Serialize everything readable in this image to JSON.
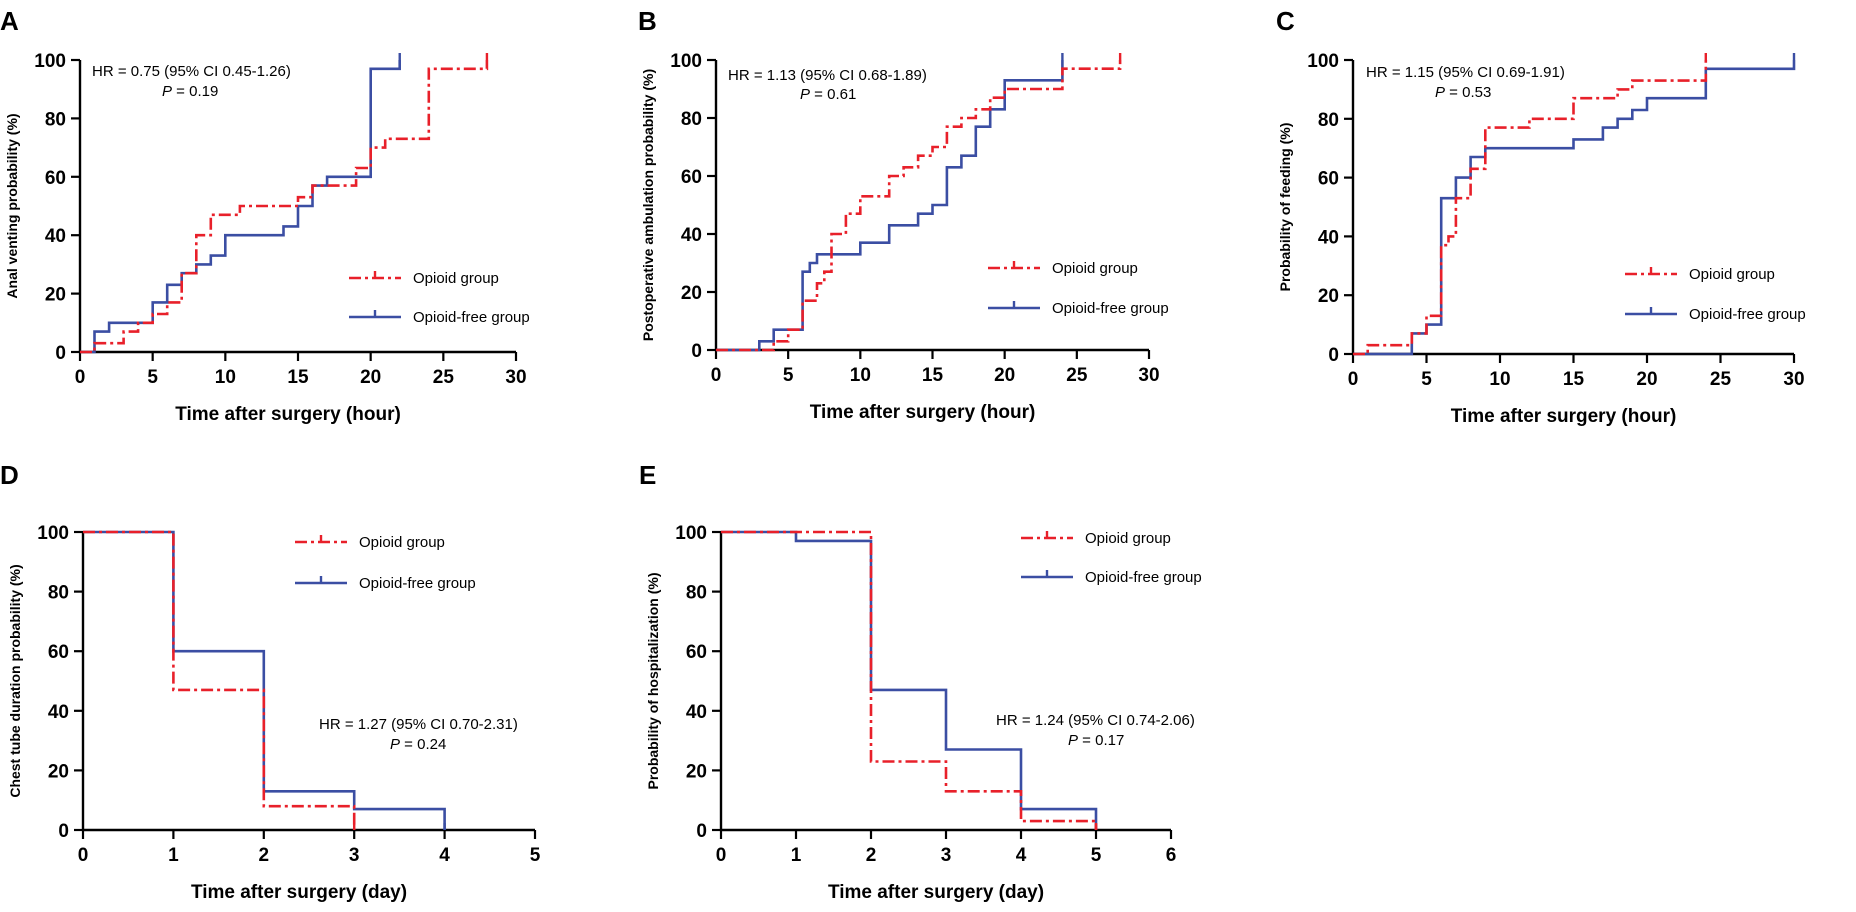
{
  "series_styles": [
    {
      "name": "Opioid group",
      "color": "#e8202a",
      "dash": "12 4 3 4"
    },
    {
      "name": "Opioid-free group",
      "color": "#3b4ea3",
      "dash": ""
    }
  ],
  "chart_data": [
    {
      "type": "line",
      "panel": "A",
      "xlabel": "Time after surgery (hour)",
      "ylabel": "Anal venting probability (%)",
      "xlim": [
        0,
        30
      ],
      "ylim": [
        0,
        100
      ],
      "xticks": [
        "0",
        "5",
        "10",
        "15",
        "20",
        "25",
        "30"
      ],
      "yticks": [
        "0",
        "20",
        "40",
        "60",
        "80",
        "100"
      ],
      "hr_text": "HR = 0.75 (95% CI 0.45-1.26)",
      "p_label": "P",
      "p_value": " = 0.19",
      "legend": [
        "Opioid group",
        "Opioid-free group"
      ],
      "series": [
        {
          "name": "Opioid group",
          "x": [
            0,
            1,
            1,
            3,
            3,
            4,
            4,
            5,
            5,
            6,
            6,
            7,
            7,
            8,
            8,
            9,
            9,
            11,
            11,
            15,
            15,
            16,
            16,
            19,
            19,
            20,
            20,
            21,
            21,
            24,
            24,
            28,
            28
          ],
          "y": [
            0,
            0,
            3,
            3,
            7,
            7,
            10,
            10,
            13,
            13,
            17,
            17,
            27,
            27,
            40,
            40,
            47,
            47,
            50,
            50,
            53,
            53,
            57,
            57,
            63,
            63,
            70,
            70,
            73,
            73,
            97,
            97,
            100
          ]
        },
        {
          "name": "Opioid-free group",
          "x": [
            0,
            1,
            1,
            2,
            2,
            5,
            5,
            6,
            6,
            7,
            7,
            8,
            8,
            9,
            9,
            10,
            10,
            14,
            14,
            15,
            15,
            16,
            16,
            17,
            17,
            20,
            20,
            22,
            22
          ],
          "y": [
            0,
            0,
            7,
            7,
            10,
            10,
            17,
            17,
            23,
            23,
            27,
            27,
            30,
            30,
            33,
            33,
            40,
            40,
            43,
            43,
            50,
            50,
            57,
            57,
            60,
            60,
            97,
            97,
            100
          ]
        }
      ]
    },
    {
      "type": "line",
      "panel": "B",
      "xlabel": "Time after surgery (hour)",
      "ylabel": "Postoperative ambulation probability (%)",
      "xlim": [
        0,
        30
      ],
      "ylim": [
        0,
        100
      ],
      "xticks": [
        "0",
        "5",
        "10",
        "15",
        "20",
        "25",
        "30"
      ],
      "yticks": [
        "0",
        "20",
        "40",
        "60",
        "80",
        "100"
      ],
      "hr_text": "HR = 1.13 (95% CI 0.68-1.89)",
      "p_label": "P",
      "p_value": " = 0.61",
      "legend": [
        "Opioid group",
        "Opioid-free group"
      ],
      "series": [
        {
          "name": "Opioid group",
          "x": [
            0,
            4,
            4,
            5,
            5,
            6,
            6,
            7,
            7,
            7.5,
            7.5,
            8,
            8,
            9,
            9,
            10,
            10,
            12,
            12,
            13,
            13,
            14,
            14,
            15,
            15,
            16,
            16,
            17,
            17,
            18,
            18,
            19,
            19,
            20,
            20,
            24,
            24,
            28,
            28
          ],
          "y": [
            0,
            0,
            3,
            3,
            7,
            7,
            17,
            17,
            23,
            23,
            27,
            27,
            40,
            40,
            47,
            47,
            53,
            53,
            60,
            60,
            63,
            63,
            67,
            67,
            70,
            70,
            77,
            77,
            80,
            80,
            83,
            83,
            87,
            87,
            90,
            90,
            97,
            97,
            100
          ]
        },
        {
          "name": "Opioid-free group",
          "x": [
            0,
            3,
            3,
            4,
            4,
            6,
            6,
            6.5,
            6.5,
            7,
            7,
            10,
            10,
            12,
            12,
            14,
            14,
            15,
            15,
            16,
            16,
            17,
            17,
            18,
            18,
            19,
            19,
            20,
            20,
            24,
            24
          ],
          "y": [
            0,
            0,
            3,
            3,
            7,
            7,
            27,
            27,
            30,
            30,
            33,
            33,
            37,
            37,
            43,
            43,
            47,
            47,
            50,
            50,
            63,
            63,
            67,
            67,
            77,
            77,
            83,
            83,
            93,
            93,
            100
          ]
        }
      ]
    },
    {
      "type": "line",
      "panel": "C",
      "xlabel": "Time after surgery (hour)",
      "ylabel": "Probability of feeding (%)",
      "xlim": [
        0,
        30
      ],
      "ylim": [
        0,
        100
      ],
      "xticks": [
        "0",
        "5",
        "10",
        "15",
        "20",
        "25",
        "30"
      ],
      "yticks": [
        "0",
        "20",
        "40",
        "60",
        "80",
        "100"
      ],
      "hr_text": "HR = 1.15 (95% CI 0.69-1.91)",
      "p_label": "P",
      "p_value": " = 0.53",
      "legend": [
        "Opioid group",
        "Opioid-free group"
      ],
      "series": [
        {
          "name": "Opioid group",
          "x": [
            0,
            1,
            1,
            4,
            4,
            5,
            5,
            6,
            6,
            6.5,
            6.5,
            7,
            7,
            8,
            8,
            9,
            9,
            12,
            12,
            15,
            15,
            18,
            18,
            19,
            19,
            20,
            20,
            24,
            24
          ],
          "y": [
            0,
            0,
            3,
            3,
            7,
            7,
            13,
            13,
            37,
            37,
            40,
            40,
            53,
            53,
            63,
            63,
            77,
            77,
            80,
            80,
            87,
            87,
            90,
            90,
            93,
            93,
            93,
            93,
            100
          ]
        },
        {
          "name": "Opioid-free group",
          "x": [
            0,
            4,
            4,
            5,
            5,
            6,
            6,
            7,
            7,
            8,
            8,
            9,
            9,
            15,
            15,
            17,
            17,
            18,
            18,
            19,
            19,
            20,
            20,
            24,
            24,
            30,
            30
          ],
          "y": [
            0,
            0,
            7,
            7,
            10,
            10,
            53,
            53,
            60,
            60,
            67,
            67,
            70,
            70,
            73,
            73,
            77,
            77,
            80,
            80,
            83,
            83,
            87,
            87,
            97,
            97,
            100
          ]
        }
      ]
    },
    {
      "type": "line",
      "panel": "D",
      "xlabel": "Time after surgery (day)",
      "ylabel": "Chest tube duration probability (%)",
      "xlim": [
        0,
        5
      ],
      "ylim": [
        0,
        100
      ],
      "xticks": [
        "0",
        "1",
        "2",
        "3",
        "4",
        "5"
      ],
      "yticks": [
        "0",
        "20",
        "40",
        "60",
        "80",
        "100"
      ],
      "hr_text": "HR = 1.27 (95% CI 0.70-2.31)",
      "p_label": "P",
      "p_value": " = 0.24",
      "legend": [
        "Opioid group",
        "Opioid-free group"
      ],
      "series": [
        {
          "name": "Opioid group",
          "x": [
            0,
            1,
            1,
            2,
            2,
            3,
            3
          ],
          "y": [
            100,
            100,
            47,
            47,
            8,
            8,
            0
          ]
        },
        {
          "name": "Opioid-free group",
          "x": [
            0,
            1,
            1,
            2,
            2,
            3,
            3,
            4,
            4
          ],
          "y": [
            100,
            100,
            60,
            60,
            13,
            13,
            7,
            7,
            0
          ]
        }
      ]
    },
    {
      "type": "line",
      "panel": "E",
      "xlabel": "Time after surgery (day)",
      "ylabel": "Probability of hospitalization (%)",
      "xlim": [
        0,
        6
      ],
      "ylim": [
        0,
        100
      ],
      "xticks": [
        "0",
        "1",
        "2",
        "3",
        "4",
        "5",
        "6"
      ],
      "yticks": [
        "0",
        "20",
        "40",
        "60",
        "80",
        "100"
      ],
      "hr_text": "HR = 1.24 (95% CI 0.74-2.06)",
      "p_label": "P",
      "p_value": " = 0.17",
      "legend": [
        "Opioid group",
        "Opioid-free group"
      ],
      "series": [
        {
          "name": "Opioid group",
          "x": [
            0,
            2,
            2,
            3,
            3,
            4,
            4,
            5,
            5
          ],
          "y": [
            100,
            100,
            23,
            23,
            13,
            13,
            3,
            3,
            0
          ]
        },
        {
          "name": "Opioid-free group",
          "x": [
            0,
            1,
            1,
            2,
            2,
            3,
            3,
            4,
            4,
            5,
            5
          ],
          "y": [
            100,
            100,
            97,
            97,
            47,
            47,
            27,
            27,
            7,
            7,
            0
          ]
        }
      ]
    }
  ]
}
